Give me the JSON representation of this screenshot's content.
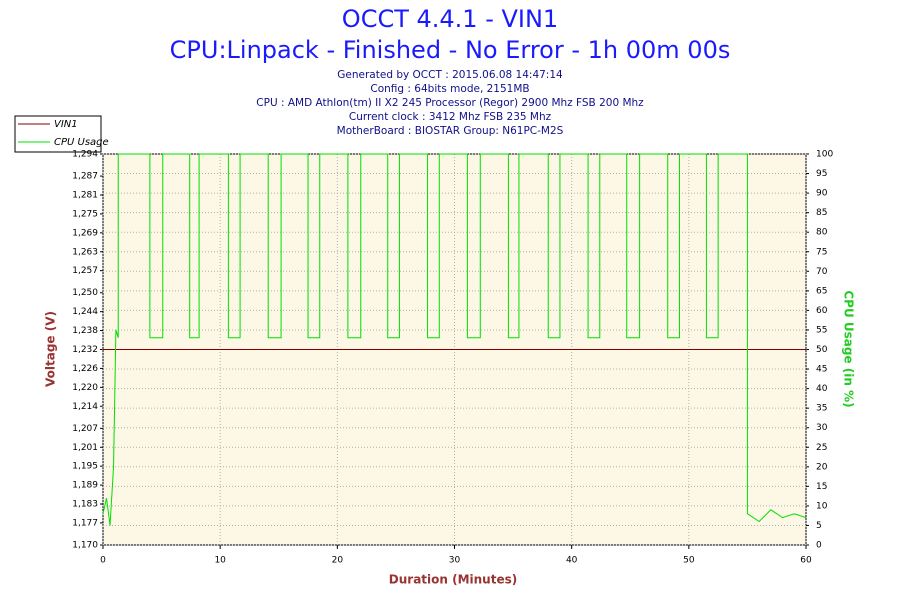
{
  "chart_data": {
    "type": "line",
    "title": "OCCT 4.4.1 - VIN1",
    "subtitle": "CPU:Linpack - Finished - No Error - 1h 00m 00s",
    "info": [
      "Generated by OCCT : 2015.06.08 14:47:14",
      "Config : 64bits mode, 2151MB",
      "CPU : AMD Athlon(tm) II X2 245 Processor (Regor) 2900 Mhz FSB 200 Mhz",
      "Current clock : 3412 Mhz FSB 235 Mhz",
      "MotherBoard : BIOSTAR Group: N61PC-M2S"
    ],
    "xlabel": "Duration (Minutes)",
    "ylabel": "Voltage (V)",
    "y2label": "CPU Usage (in %)",
    "xlim": [
      0,
      60
    ],
    "xticks": [
      0,
      10,
      20,
      30,
      40,
      50,
      60
    ],
    "ylim": [
      1.17,
      1.294
    ],
    "yticks": [
      {
        "value": 1.17,
        "label": "1,170"
      },
      {
        "value": 1.177,
        "label": "1,177"
      },
      {
        "value": 1.183,
        "label": "1,183"
      },
      {
        "value": 1.189,
        "label": "1,189"
      },
      {
        "value": 1.195,
        "label": "1,195"
      },
      {
        "value": 1.201,
        "label": "1,201"
      },
      {
        "value": 1.207,
        "label": "1,207"
      },
      {
        "value": 1.214,
        "label": "1,214"
      },
      {
        "value": 1.22,
        "label": "1,220"
      },
      {
        "value": 1.226,
        "label": "1,226"
      },
      {
        "value": 1.232,
        "label": "1,232"
      },
      {
        "value": 1.238,
        "label": "1,238"
      },
      {
        "value": 1.244,
        "label": "1,244"
      },
      {
        "value": 1.25,
        "label": "1,250"
      },
      {
        "value": 1.257,
        "label": "1,257"
      },
      {
        "value": 1.263,
        "label": "1,263"
      },
      {
        "value": 1.269,
        "label": "1,269"
      },
      {
        "value": 1.275,
        "label": "1,275"
      },
      {
        "value": 1.281,
        "label": "1,281"
      },
      {
        "value": 1.287,
        "label": "1,287"
      },
      {
        "value": 1.294,
        "label": "1,294"
      }
    ],
    "y2lim": [
      0,
      100
    ],
    "y2ticks": [
      0,
      5,
      10,
      15,
      20,
      25,
      30,
      35,
      40,
      45,
      50,
      55,
      60,
      65,
      70,
      75,
      80,
      85,
      90,
      95,
      100
    ],
    "grid": true,
    "legend": "top-left",
    "series": [
      {
        "name": "VIN1",
        "color": "#800000",
        "x": [
          0,
          60
        ],
        "values": [
          1.232,
          1.232
        ]
      },
      {
        "name": "CPU Usage",
        "color": "#00e000",
        "axis": "y2",
        "x": [
          0,
          0.3,
          0.6,
          0.9,
          1.1,
          1.3,
          1.3,
          4.0,
          4.0,
          5.1,
          5.1,
          7.4,
          7.4,
          8.2,
          8.2,
          10.7,
          10.7,
          11.7,
          11.7,
          14.1,
          14.1,
          15.2,
          15.2,
          17.5,
          17.5,
          18.5,
          18.5,
          20.9,
          20.9,
          22.0,
          22.0,
          24.3,
          24.3,
          25.3,
          25.3,
          27.7,
          27.7,
          28.7,
          28.7,
          31.1,
          31.1,
          32.2,
          32.2,
          34.6,
          34.6,
          35.5,
          35.5,
          38.0,
          38.0,
          39.0,
          39.0,
          41.4,
          41.4,
          42.4,
          42.4,
          44.7,
          44.7,
          45.8,
          45.8,
          48.2,
          48.2,
          49.2,
          49.2,
          51.5,
          51.5,
          52.5,
          52.5,
          55.0,
          55.0,
          56,
          57,
          58,
          59,
          60
        ],
        "values": [
          8,
          12,
          5,
          20,
          55,
          53,
          100,
          100,
          53,
          53,
          100,
          100,
          53,
          53,
          100,
          100,
          53,
          53,
          100,
          100,
          53,
          53,
          100,
          100,
          53,
          53,
          100,
          100,
          53,
          53,
          100,
          100,
          53,
          53,
          100,
          100,
          53,
          53,
          100,
          100,
          53,
          53,
          100,
          100,
          53,
          53,
          100,
          100,
          53,
          53,
          100,
          100,
          53,
          53,
          100,
          100,
          53,
          53,
          100,
          100,
          53,
          53,
          100,
          100,
          53,
          53,
          100,
          100,
          8,
          6,
          9,
          7,
          8,
          7
        ]
      }
    ]
  }
}
